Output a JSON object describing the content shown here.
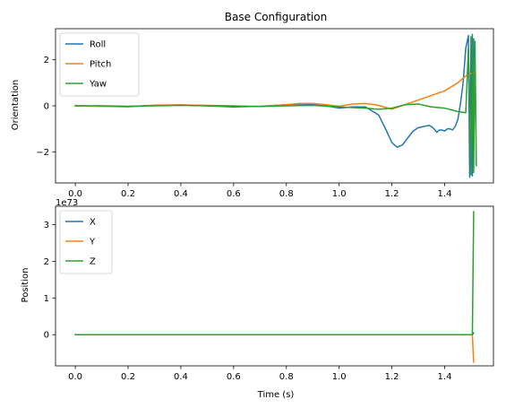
{
  "chart_data": [
    {
      "type": "line",
      "title": "Base Configuration",
      "xlabel": "",
      "ylabel": "Orientation",
      "xlim": [
        -0.075,
        1.585
      ],
      "ylim": [
        -3.35,
        3.35
      ],
      "xticks": [
        0.0,
        0.2,
        0.4,
        0.6,
        0.8,
        1.0,
        1.2,
        1.4
      ],
      "xtick_labels": [
        "0.0",
        "0.2",
        "0.4",
        "0.6",
        "0.8",
        "1.0",
        "1.2",
        "1.4"
      ],
      "yticks": [
        -2,
        0,
        2
      ],
      "ytick_labels": [
        "−2",
        "0",
        "2"
      ],
      "legend_position": "top-left",
      "series": [
        {
          "name": "Roll",
          "color": "#1f77b4",
          "x": [
            0,
            0.1,
            0.2,
            0.3,
            0.4,
            0.5,
            0.6,
            0.7,
            0.8,
            0.85,
            0.9,
            0.95,
            1.0,
            1.05,
            1.1,
            1.15,
            1.18,
            1.2,
            1.22,
            1.24,
            1.26,
            1.28,
            1.3,
            1.32,
            1.34,
            1.35,
            1.36,
            1.37,
            1.38,
            1.39,
            1.4,
            1.41,
            1.42,
            1.43,
            1.44,
            1.45,
            1.46,
            1.47,
            1.48,
            1.49,
            1.495,
            1.5,
            1.505,
            1.51
          ],
          "y": [
            0,
            -0.02,
            -0.03,
            0.02,
            0.04,
            0.0,
            -0.05,
            -0.02,
            0.05,
            0.08,
            0.06,
            0.0,
            -0.1,
            -0.05,
            -0.05,
            -0.4,
            -1.1,
            -1.6,
            -1.8,
            -1.7,
            -1.4,
            -1.1,
            -0.95,
            -0.9,
            -0.85,
            -0.9,
            -1.0,
            -1.15,
            -1.05,
            -1.05,
            -1.1,
            -1.0,
            -1.0,
            -1.05,
            -0.9,
            -0.6,
            0.1,
            1.0,
            2.5,
            3.05,
            -3.1,
            3.0,
            -3.05,
            2.9
          ]
        },
        {
          "name": "Pitch",
          "color": "#ff7f0e",
          "x": [
            0,
            0.1,
            0.2,
            0.3,
            0.4,
            0.5,
            0.6,
            0.7,
            0.8,
            0.85,
            0.9,
            0.95,
            1.0,
            1.05,
            1.1,
            1.15,
            1.2,
            1.25,
            1.3,
            1.35,
            1.4,
            1.45,
            1.48,
            1.5,
            1.51
          ],
          "y": [
            0,
            -0.02,
            -0.05,
            0.03,
            0.04,
            0.02,
            0.0,
            -0.03,
            0.05,
            0.1,
            0.1,
            0.05,
            -0.02,
            0.08,
            0.1,
            0.02,
            -0.15,
            0.05,
            0.25,
            0.45,
            0.65,
            1.0,
            1.3,
            1.4,
            1.45
          ]
        },
        {
          "name": "Yaw",
          "color": "#2ca02c",
          "x": [
            0,
            0.1,
            0.2,
            0.3,
            0.4,
            0.5,
            0.6,
            0.7,
            0.8,
            0.9,
            1.0,
            1.1,
            1.15,
            1.2,
            1.25,
            1.3,
            1.35,
            1.4,
            1.45,
            1.48,
            1.49,
            1.5,
            1.505,
            1.51,
            1.515,
            1.52
          ],
          "y": [
            0,
            0.0,
            -0.02,
            0.0,
            0.02,
            0.0,
            -0.02,
            -0.03,
            0.0,
            0.02,
            -0.05,
            -0.1,
            -0.15,
            -0.1,
            0.05,
            0.08,
            -0.05,
            -0.1,
            -0.25,
            -0.3,
            2.5,
            -3.0,
            3.1,
            -2.9,
            2.8,
            -2.6
          ]
        }
      ]
    },
    {
      "type": "line",
      "title": "",
      "xlabel": "Time (s)",
      "ylabel": "Position",
      "offset_text": "1e73",
      "xlim": [
        -0.075,
        1.585
      ],
      "ylim": [
        -0.85,
        3.5
      ],
      "xticks": [
        0.0,
        0.2,
        0.4,
        0.6,
        0.8,
        1.0,
        1.2,
        1.4
      ],
      "xtick_labels": [
        "0.0",
        "0.2",
        "0.4",
        "0.6",
        "0.8",
        "1.0",
        "1.2",
        "1.4"
      ],
      "yticks": [
        0,
        1,
        2,
        3
      ],
      "ytick_labels": [
        "0",
        "1",
        "2",
        "3"
      ],
      "legend_position": "top-left",
      "series": [
        {
          "name": "X",
          "color": "#1f77b4",
          "x": [
            0,
            1.5,
            1.505,
            1.51
          ],
          "y": [
            0,
            0,
            0,
            0.05
          ]
        },
        {
          "name": "Y",
          "color": "#ff7f0e",
          "x": [
            0,
            1.5,
            1.505,
            1.51
          ],
          "y": [
            0,
            0,
            0,
            -0.75
          ]
        },
        {
          "name": "Z",
          "color": "#2ca02c",
          "x": [
            0,
            1.5,
            1.505,
            1.51
          ],
          "y": [
            0,
            0,
            0,
            3.35
          ]
        }
      ]
    }
  ]
}
